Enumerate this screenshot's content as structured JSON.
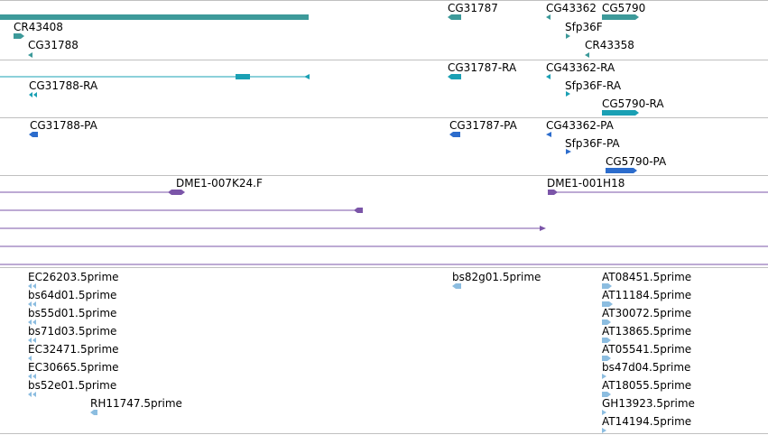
{
  "colors": {
    "gene": "#3d9a9a",
    "transcript_ra": "#1aa0b4",
    "transcript_pa": "#2c6ccc",
    "clone": "#7b55a8",
    "est": "#8cbde0",
    "separator": "#c0c0c0"
  },
  "tracks": {
    "genes": {
      "labels": [
        "CR43408",
        "CG31788",
        "CG31787",
        "CG43362",
        "CG5790",
        "Sfp36F",
        "CR43358"
      ]
    },
    "transcripts_ra": {
      "labels": [
        "CG31788-RA",
        "CG31787-RA",
        "CG43362-RA",
        "Sfp36F-RA",
        "CG5790-RA"
      ]
    },
    "transcripts_pa": {
      "labels": [
        "CG31788-PA",
        "CG31787-PA",
        "CG43362-PA",
        "Sfp36F-PA",
        "CG5790-PA"
      ]
    },
    "clones": {
      "labels": [
        "DME1-007K24.F",
        "DME1-001H18"
      ]
    },
    "ests": {
      "labels": [
        "EC26203.5prime",
        "bs64d01.5prime",
        "bs55d01.5prime",
        "bs71d03.5prime",
        "EC32471.5prime",
        "EC30665.5prime",
        "bs52e01.5prime",
        "RH11747.5prime",
        "bs82g01.5prime",
        "AT08451.5prime",
        "AT11184.5prime",
        "AT30072.5prime",
        "AT13865.5prime",
        "AT05541.5prime",
        "bs47d04.5prime",
        "AT18055.5prime",
        "GH13923.5prime",
        "AT14194.5prime"
      ]
    }
  }
}
